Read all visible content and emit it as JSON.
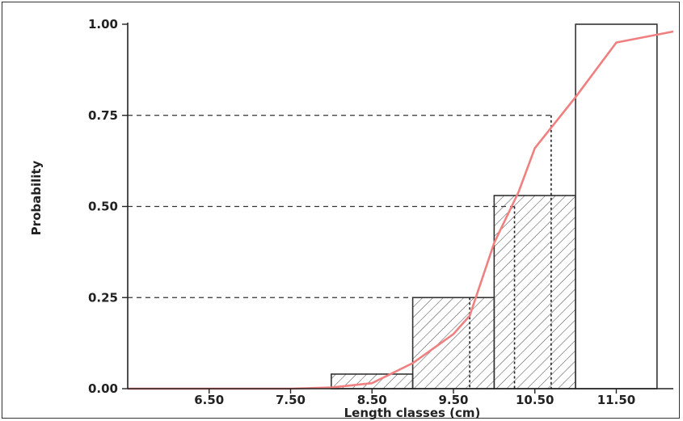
{
  "chart_data": {
    "type": "bar",
    "title": "",
    "xlabel": "Length classes (cm)",
    "ylabel": "Probability",
    "xlim": [
      5.5,
      12.2
    ],
    "ylim": [
      0,
      1
    ],
    "x_ticks": [
      6.5,
      7.5,
      8.5,
      9.5,
      10.5,
      11.5
    ],
    "x_tick_labels": [
      "6.50",
      "7.50",
      "8.50",
      "9.50",
      "10.50",
      "11.50"
    ],
    "y_ticks": [
      0,
      0.25,
      0.5,
      0.75,
      1.0
    ],
    "y_tick_labels": [
      "0.00",
      "0.25",
      "0.50",
      "0.75",
      "1.00"
    ],
    "bars": [
      {
        "x0": 8.0,
        "x1": 9.0,
        "value": 0.04,
        "hatched": true
      },
      {
        "x0": 9.0,
        "x1": 10.0,
        "value": 0.25,
        "hatched": true
      },
      {
        "x0": 10.0,
        "x1": 11.0,
        "value": 0.53,
        "hatched": true
      },
      {
        "x0": 11.0,
        "x1": 12.0,
        "value": 1.0,
        "hatched": false
      }
    ],
    "curve": {
      "color": "#f08080",
      "points": [
        [
          5.5,
          0.0
        ],
        [
          7.5,
          0.0
        ],
        [
          8.0,
          0.003
        ],
        [
          8.5,
          0.015
        ],
        [
          9.0,
          0.07
        ],
        [
          9.5,
          0.15
        ],
        [
          9.7,
          0.2
        ],
        [
          10.0,
          0.4
        ],
        [
          10.3,
          0.54
        ],
        [
          10.5,
          0.66
        ],
        [
          11.0,
          0.8
        ],
        [
          11.5,
          0.95
        ],
        [
          12.2,
          0.98
        ]
      ]
    },
    "reference_lines": [
      {
        "y": 0.25,
        "x_drop": 9.7
      },
      {
        "y": 0.5,
        "x_drop": 10.25
      },
      {
        "y": 0.75,
        "x_drop": 10.7
      }
    ],
    "grid": false,
    "legend": "none"
  }
}
